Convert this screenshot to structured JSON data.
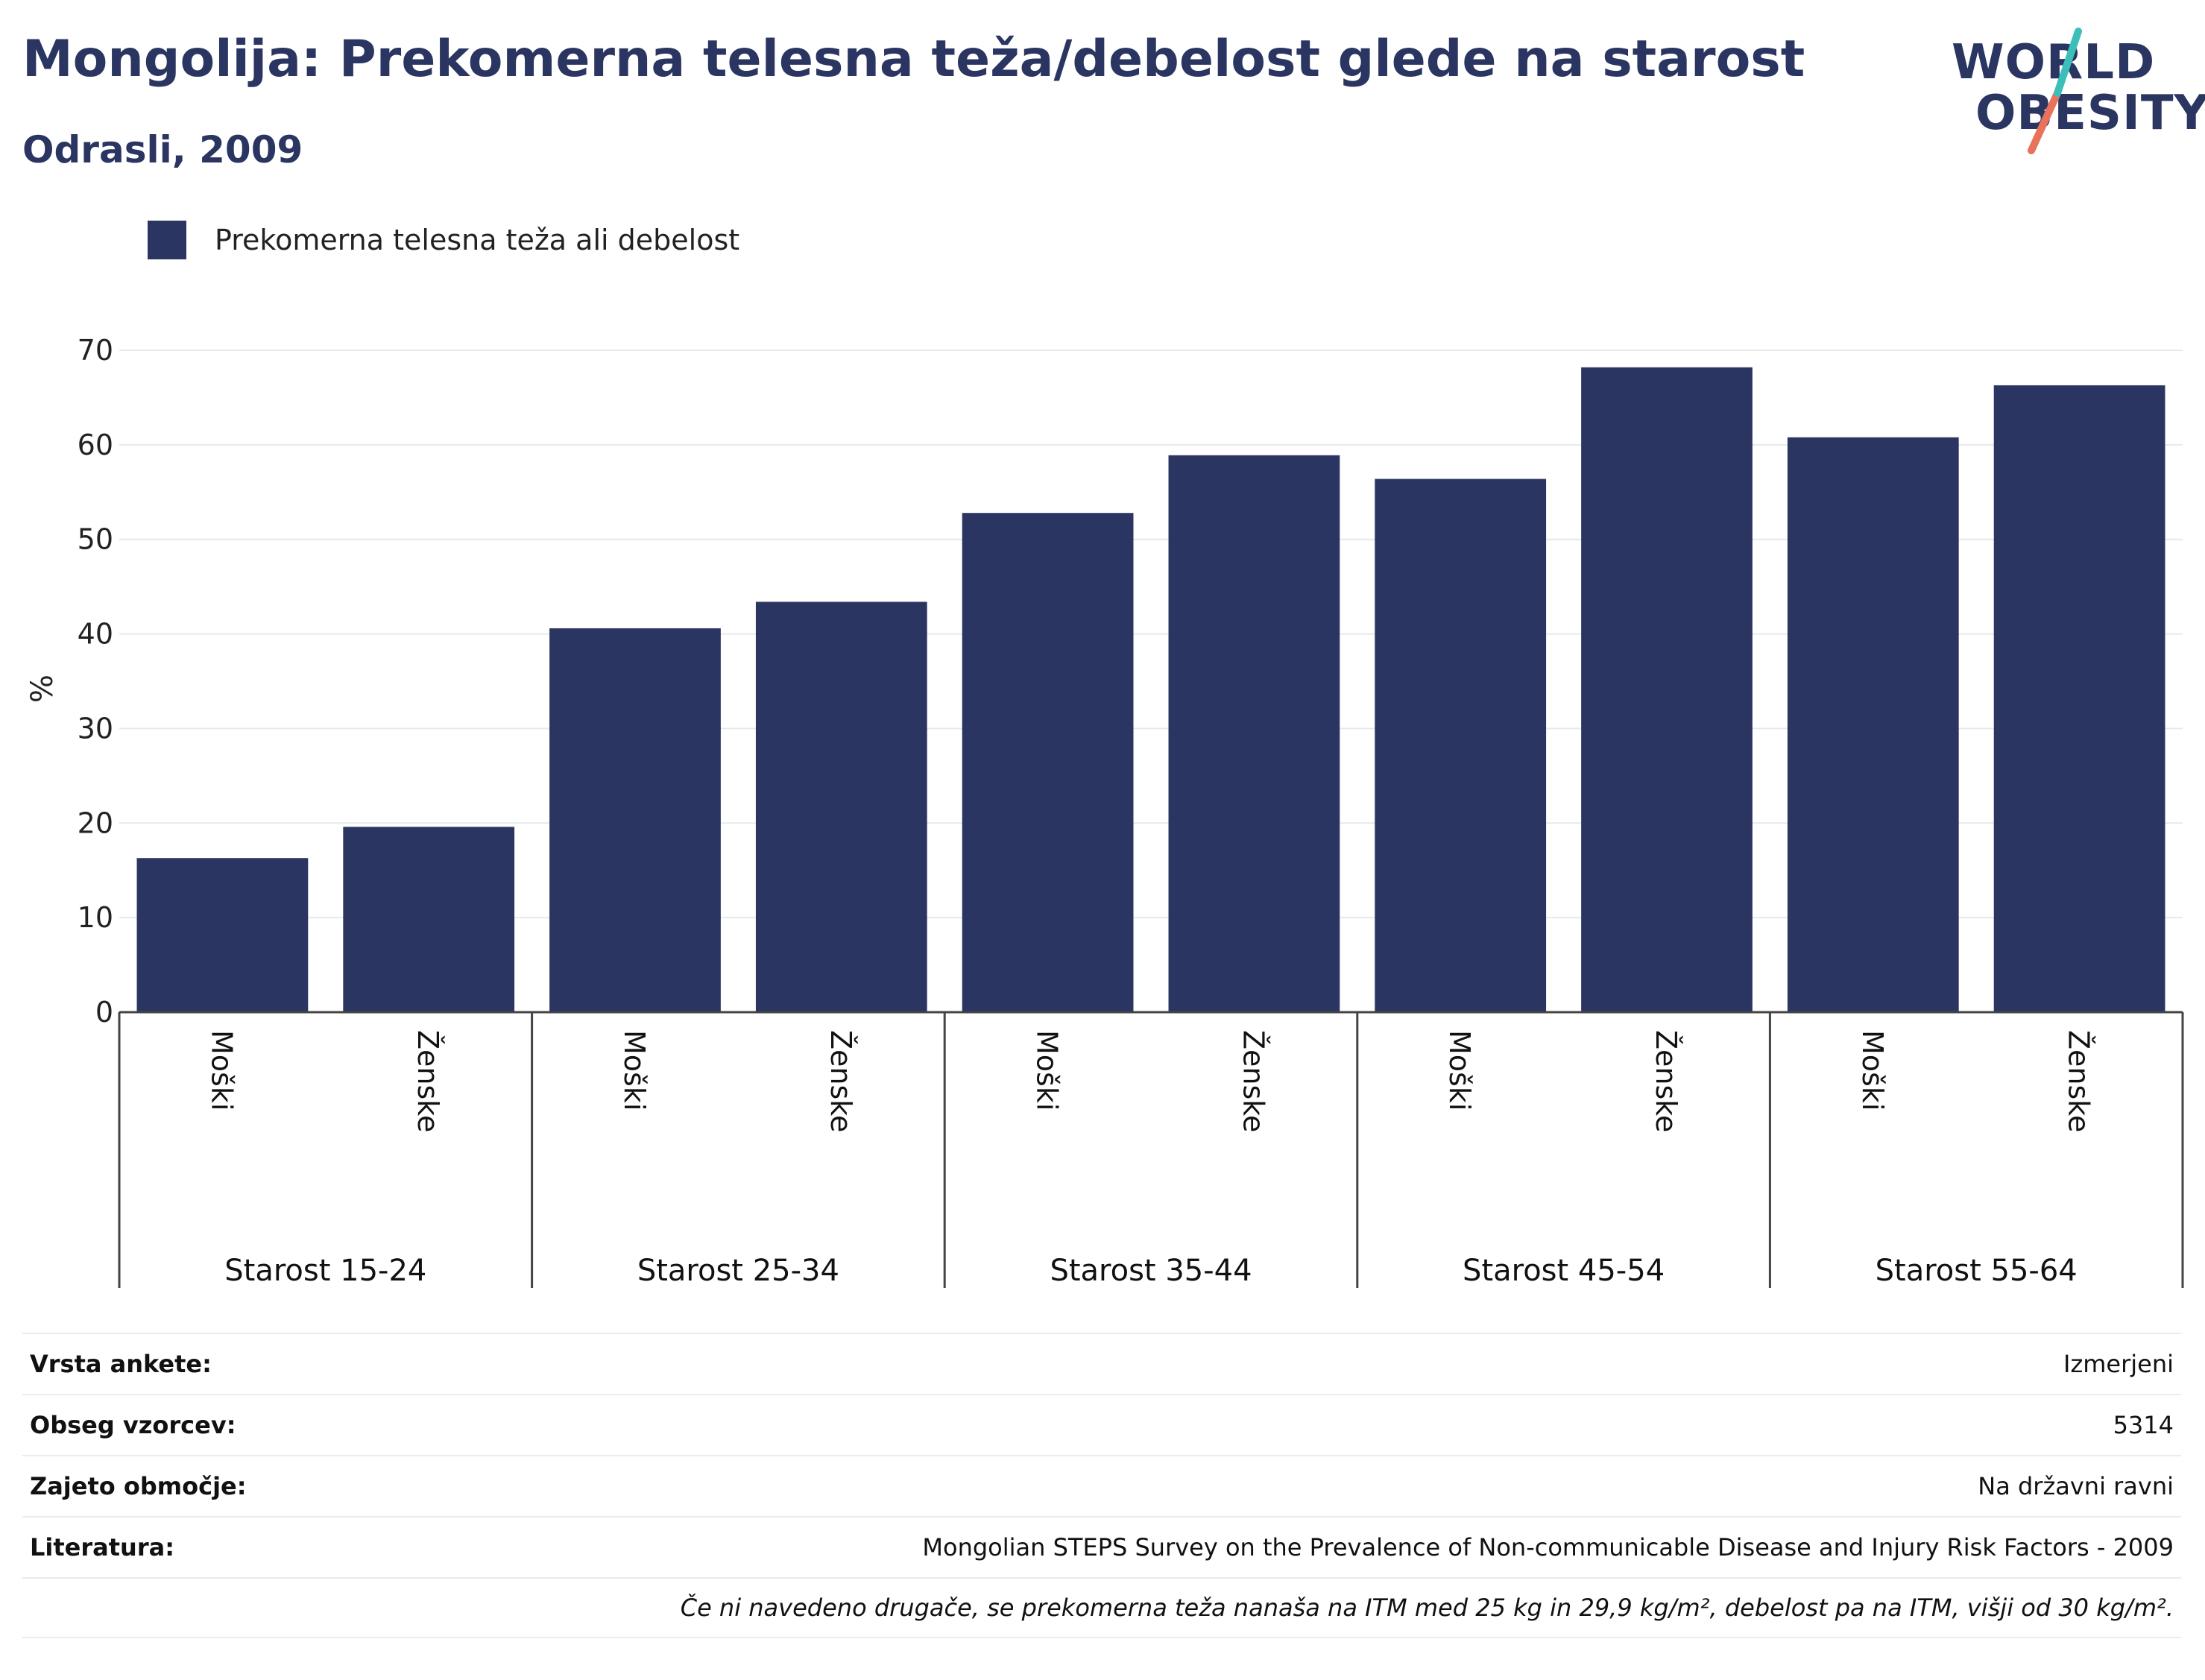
{
  "header": {
    "title": "Mongolija: Prekomerna telesna teža/debelost glede na starost",
    "subtitle": "Odrasli, 2009"
  },
  "logo": {
    "line1": "WORLD",
    "line2": "OBESITY"
  },
  "colors": {
    "bar": "#2b3561",
    "text": "#2b3561",
    "logo_accent_teal": "#3bbfb8",
    "logo_accent_coral": "#e8735a"
  },
  "legend": {
    "label": "Prekomerna telesna teža ali debelost"
  },
  "chart_data": {
    "type": "bar",
    "ylabel": "%",
    "ylim": [
      0,
      70
    ],
    "yticks": [
      0,
      10,
      20,
      30,
      40,
      50,
      60,
      70
    ],
    "grid": true,
    "legend_position": "top-left",
    "groups": [
      "Starost 15-24",
      "Starost 25-34",
      "Starost 35-44",
      "Starost 45-54",
      "Starost 55-64"
    ],
    "sublabels": [
      "Moški",
      "Ženske"
    ],
    "series": [
      {
        "name": "Prekomerna telesna teža ali debelost",
        "values": [
          16.3,
          19.6,
          40.6,
          43.4,
          52.8,
          58.9,
          56.4,
          68.2,
          60.8,
          66.3
        ]
      }
    ]
  },
  "meta": {
    "rows": [
      {
        "key": "Vrsta ankete:",
        "value": "Izmerjeni"
      },
      {
        "key": "Obseg vzorcev:",
        "value": "5314"
      },
      {
        "key": "Zajeto območje:",
        "value": "Na državni ravni"
      },
      {
        "key": "Literatura:",
        "value": "Mongolian STEPS Survey on the Prevalence of Non-communicable Disease and Injury Risk Factors - 2009"
      }
    ],
    "note": "Če ni navedeno drugače, se prekomerna teža nanaša na ITM med 25 kg in 29,9 kg/m², debelost pa na ITM, višji od 30 kg/m²."
  }
}
